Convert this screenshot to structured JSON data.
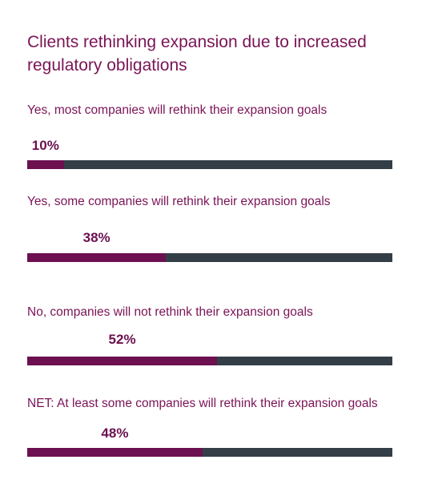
{
  "chart_data": {
    "type": "bar",
    "title": "Clients rethinking expansion due to increased regulatory obligations",
    "categories": [
      "Yes, most companies will rethink their expansion goals",
      "Yes, some companies will rethink their expansion goals",
      "No, companies will not rethink their expansion goals",
      "NET: At least some companies will rethink their expansion goals"
    ],
    "values": [
      10,
      38,
      52,
      48
    ],
    "value_labels": [
      "10%",
      "38%",
      "52%",
      "48%"
    ],
    "ylim": [
      0,
      100
    ],
    "grid": false,
    "legend": "none",
    "colors": {
      "fill": "#6c1050",
      "track": "#343e47",
      "text": "#7a1456"
    }
  }
}
